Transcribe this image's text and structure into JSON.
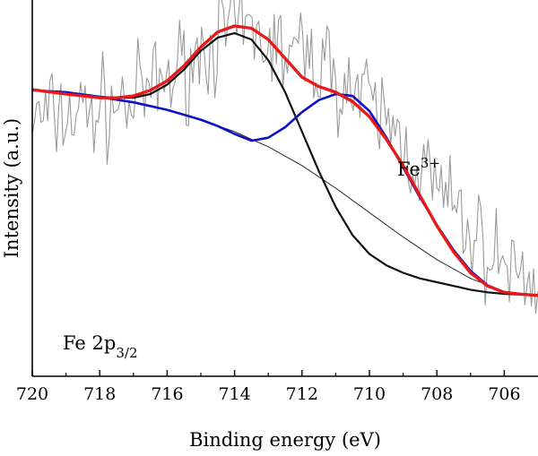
{
  "chart_data": {
    "type": "line",
    "title": "",
    "xlabel": "Binding energy (eV)",
    "ylabel": "Intensity (a.u.)",
    "x_reversed": true,
    "xlim": [
      720,
      705
    ],
    "ylim": [
      0,
      100
    ],
    "y_ticks_shown": false,
    "xticks": [
      720,
      718,
      716,
      714,
      712,
      710,
      708,
      706
    ],
    "annotations": {
      "panel_label": {
        "main": "Fe 2p",
        "sub": "3/2"
      },
      "peak_label": {
        "main": "Fe",
        "sup": "3+"
      }
    },
    "series": [
      {
        "role": "raw",
        "color": "#9a9a9a",
        "seed": 7,
        "noise_amp": 6.5,
        "x_points": 230,
        "envelope": [
          [
            720,
            68
          ],
          [
            718.5,
            70
          ],
          [
            717,
            73
          ],
          [
            716,
            79
          ],
          [
            715,
            86
          ],
          [
            714.5,
            90
          ],
          [
            714,
            92
          ],
          [
            713.5,
            91
          ],
          [
            712.5,
            86
          ],
          [
            711.5,
            84
          ],
          [
            711,
            80
          ],
          [
            710.5,
            76
          ],
          [
            710,
            72
          ],
          [
            709.5,
            68
          ],
          [
            709,
            62
          ],
          [
            708.5,
            56
          ],
          [
            708,
            50
          ],
          [
            707.5,
            44
          ],
          [
            707,
            38
          ],
          [
            706.5,
            33
          ],
          [
            706,
            30
          ],
          [
            705.5,
            27
          ],
          [
            705,
            24
          ]
        ]
      },
      {
        "role": "fit-envelope",
        "color": "#e61a1a",
        "points": [
          [
            720,
            76.2
          ],
          [
            719,
            75
          ],
          [
            718,
            74
          ],
          [
            717.5,
            74
          ],
          [
            717,
            74.5
          ],
          [
            716.5,
            76
          ],
          [
            716,
            78.5
          ],
          [
            715.5,
            82.5
          ],
          [
            715,
            87.5
          ],
          [
            714.5,
            91.5
          ],
          [
            714,
            93.1
          ],
          [
            713.5,
            92.5
          ],
          [
            713,
            89.5
          ],
          [
            712.5,
            84.5
          ],
          [
            712,
            79.5
          ],
          [
            711.5,
            77
          ],
          [
            711,
            75.5
          ],
          [
            710.5,
            73
          ],
          [
            710,
            69
          ],
          [
            709.5,
            63
          ],
          [
            709,
            56
          ],
          [
            708.5,
            48
          ],
          [
            708,
            40
          ],
          [
            707.5,
            33
          ],
          [
            707,
            27.5
          ],
          [
            706.5,
            24
          ],
          [
            706,
            22.3
          ],
          [
            705.5,
            21.8
          ],
          [
            705,
            21.5
          ]
        ]
      },
      {
        "role": "fe2-component",
        "color": "#111111",
        "points": [
          [
            720,
            76
          ],
          [
            719,
            75.5
          ],
          [
            718,
            74.3
          ],
          [
            717.5,
            74
          ],
          [
            717,
            74
          ],
          [
            716.5,
            75
          ],
          [
            716,
            77.5
          ],
          [
            715.5,
            81.5
          ],
          [
            715,
            86.5
          ],
          [
            714.5,
            90
          ],
          [
            714,
            91.2
          ],
          [
            713.5,
            89.5
          ],
          [
            713,
            84
          ],
          [
            712.5,
            75.5
          ],
          [
            712,
            65
          ],
          [
            711.5,
            54.5
          ],
          [
            711,
            45
          ],
          [
            710.5,
            37.5
          ],
          [
            710,
            32.5
          ],
          [
            709.5,
            29.5
          ],
          [
            709,
            27.5
          ],
          [
            708.5,
            26
          ],
          [
            708,
            25
          ],
          [
            707.5,
            24
          ],
          [
            707,
            23
          ],
          [
            706.5,
            22.3
          ],
          [
            706,
            21.9
          ],
          [
            705.5,
            21.7
          ],
          [
            705,
            21.5
          ]
        ]
      },
      {
        "role": "fe3-component",
        "color": "#1010c8",
        "points": [
          [
            720,
            76
          ],
          [
            719,
            75.5
          ],
          [
            718,
            74.2
          ],
          [
            717,
            72.8
          ],
          [
            716,
            70.8
          ],
          [
            715,
            68.2
          ],
          [
            714.5,
            66.5
          ],
          [
            714,
            64.4
          ],
          [
            713.5,
            62.6
          ],
          [
            713,
            63.4
          ],
          [
            712.5,
            66.2
          ],
          [
            712,
            70.2
          ],
          [
            711.5,
            73.4
          ],
          [
            711,
            75
          ],
          [
            710.5,
            74.5
          ],
          [
            710,
            70.5
          ],
          [
            709.5,
            63.5
          ],
          [
            709,
            55.5
          ],
          [
            708.5,
            47.5
          ],
          [
            708,
            40.2
          ],
          [
            707.5,
            33.5
          ],
          [
            707,
            28
          ],
          [
            706.5,
            24.2
          ],
          [
            706,
            22.3
          ],
          [
            705.5,
            21.8
          ],
          [
            705,
            21.5
          ]
        ]
      },
      {
        "role": "baseline",
        "color": "#2a2a2a",
        "points": [
          [
            720,
            76
          ],
          [
            719,
            75.5
          ],
          [
            718,
            74.2
          ],
          [
            717,
            72.8
          ],
          [
            716,
            70.8
          ],
          [
            715,
            68.2
          ],
          [
            714,
            65
          ],
          [
            713,
            61
          ],
          [
            712,
            56
          ],
          [
            711,
            50
          ],
          [
            710,
            43.5
          ],
          [
            709,
            37
          ],
          [
            708,
            31
          ],
          [
            707,
            26
          ],
          [
            706,
            22.5
          ],
          [
            705,
            21.5
          ]
        ]
      }
    ]
  }
}
